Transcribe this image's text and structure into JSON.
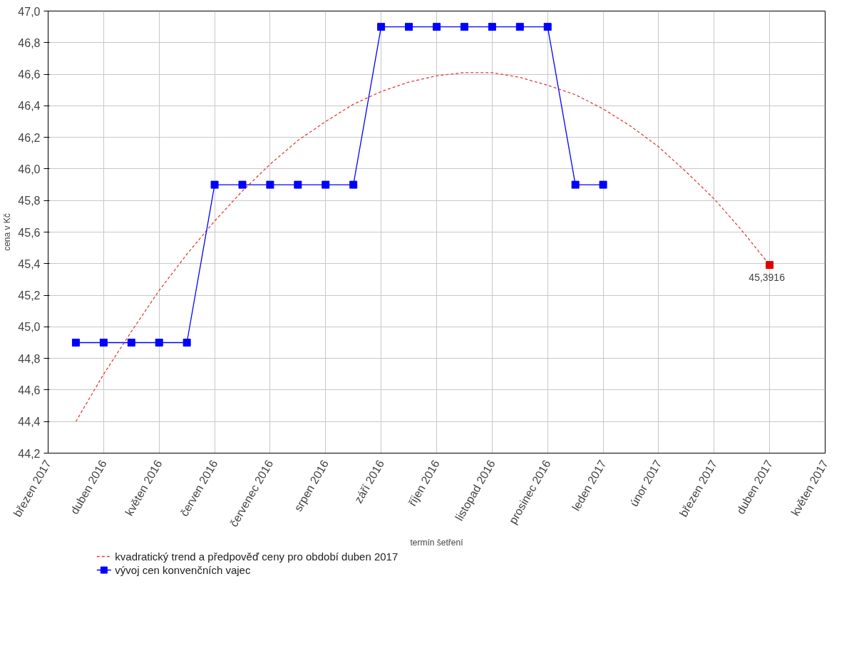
{
  "chart_data": {
    "type": "line",
    "xlabel": "termín šetření",
    "ylabel": "cena v Kč",
    "categories": [
      "březen 2017",
      null,
      "duben 2016",
      null,
      "květen 2016",
      null,
      "červen 2016",
      null,
      "červenec 2016",
      null,
      "srpen 2016",
      null,
      "září 2016",
      null,
      "říjen 2016",
      null,
      "listopad 2016",
      null,
      "prosinec 2016",
      null,
      "leden 2017",
      null,
      "únor 2017",
      null,
      "březen 2017",
      null,
      "duben 2017",
      null,
      "květen 2017"
    ],
    "ylim": [
      44.2,
      47.0
    ],
    "yticks": [
      {
        "value": 44.2,
        "label": "44,2"
      },
      {
        "value": 44.4,
        "label": "44,4"
      },
      {
        "value": 44.6,
        "label": "44,6"
      },
      {
        "value": 44.8,
        "label": "44,8"
      },
      {
        "value": 45.0,
        "label": "45,0"
      },
      {
        "value": 45.2,
        "label": "45,2"
      },
      {
        "value": 45.4,
        "label": "45,4"
      },
      {
        "value": 45.6,
        "label": "45,6"
      },
      {
        "value": 45.8,
        "label": "45,8"
      },
      {
        "value": 46.0,
        "label": "46,0"
      },
      {
        "value": 46.2,
        "label": "46,2"
      },
      {
        "value": 46.4,
        "label": "46,4"
      },
      {
        "value": 46.6,
        "label": "46,6"
      },
      {
        "value": 46.8,
        "label": "46,8"
      },
      {
        "value": 47.0,
        "label": "47,0"
      }
    ],
    "grid": true,
    "legend": "bottom",
    "series": [
      {
        "name": "kvadratický trend a předpověď ceny pro období duben 2017",
        "type": "line",
        "color": "#e0403c",
        "line_style": "dashed",
        "marker": "none",
        "values": [
          null,
          44.4,
          44.7,
          44.97,
          45.23,
          45.46,
          45.67,
          45.86,
          46.03,
          46.18,
          46.3,
          46.41,
          46.49,
          46.55,
          46.59,
          46.61,
          46.61,
          46.58,
          46.53,
          46.47,
          46.38,
          46.27,
          46.14,
          45.98,
          45.81,
          45.61,
          45.3916,
          null,
          null
        ]
      },
      {
        "type": "scatter",
        "color": "#e00000",
        "marker": "square",
        "values": [
          null,
          null,
          null,
          null,
          null,
          null,
          null,
          null,
          null,
          null,
          null,
          null,
          null,
          null,
          null,
          null,
          null,
          null,
          null,
          null,
          null,
          null,
          null,
          null,
          null,
          null,
          45.3916,
          null,
          null
        ]
      },
      {
        "name": "vývoj cen konvenčních vajec",
        "type": "line",
        "color": "#0000ff",
        "line_style": "solid",
        "marker": "square",
        "values": [
          null,
          44.9,
          44.9,
          44.9,
          44.9,
          44.9,
          45.9,
          45.9,
          45.9,
          45.9,
          45.9,
          45.9,
          46.9,
          46.9,
          46.9,
          46.9,
          46.9,
          46.9,
          46.9,
          45.9,
          45.9,
          null,
          null,
          null,
          null,
          null,
          null,
          null,
          null
        ]
      }
    ],
    "annotations": [
      "45,3916"
    ]
  }
}
